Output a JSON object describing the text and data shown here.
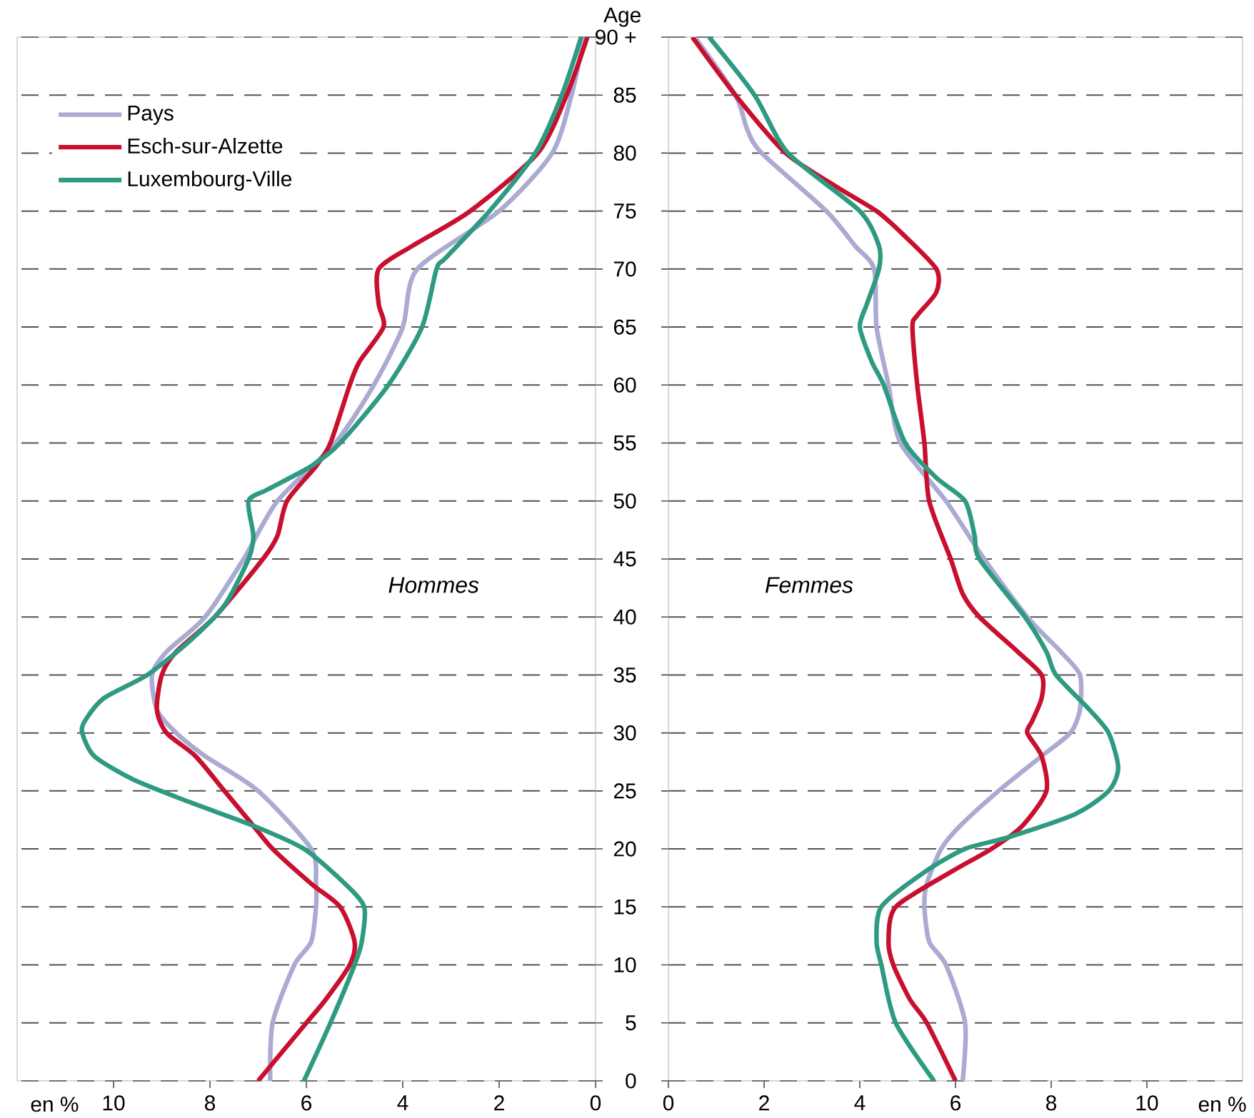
{
  "chart_data": [
    {
      "type": "line",
      "xlabel": "en %",
      "annotations": [
        "Hommes"
      ],
      "xlim": [
        12,
        0
      ],
      "xticks": [
        10,
        8,
        6,
        4,
        2,
        0
      ],
      "ylim": [
        0,
        90
      ],
      "yticks": [
        0,
        5,
        10,
        15,
        20,
        25,
        30,
        35,
        40,
        45,
        50,
        55,
        60,
        65,
        70,
        75,
        80,
        85,
        90
      ],
      "tick_labels": "x",
      "grid": "y",
      "legend": "top left",
      "series": [
        {
          "name": "Pays",
          "color": "#aaaad2",
          "x": [
            6.75,
            6.7,
            6.25,
            5.9,
            5.8,
            5.8,
            5.9,
            7.0,
            8.1,
            8.7,
            9.1,
            9.2,
            8.9,
            8.1,
            7.3,
            6.6,
            5.4,
            4.6,
            4.0,
            3.7,
            2.0,
            0.9,
            0.5,
            0.24
          ],
          "values": [
            0,
            5,
            10,
            12,
            15,
            17,
            20,
            25,
            28,
            30,
            32,
            35,
            37,
            40,
            45,
            50,
            55,
            60,
            65,
            70,
            75,
            80,
            85,
            90
          ]
        },
        {
          "name": "Esch-sur-Alzette",
          "color": "#c8102e",
          "x": [
            7.0,
            6.0,
            5.6,
            5.1,
            5.0,
            5.3,
            5.9,
            6.7,
            7.1,
            7.7,
            8.3,
            8.9,
            9.1,
            9.0,
            8.7,
            7.9,
            6.9,
            6.6,
            6.4,
            5.8,
            5.5,
            5.1,
            4.9,
            4.4,
            4.5,
            4.5,
            3.8,
            2.6,
            1.2,
            0.6,
            0.17
          ],
          "values": [
            0,
            5,
            7,
            10,
            12,
            15,
            17,
            20,
            22,
            25,
            28,
            30,
            32,
            35,
            37,
            40,
            45,
            47,
            50,
            53,
            55,
            60,
            62,
            65,
            67,
            70,
            72,
            75,
            80,
            85,
            90
          ]
        },
        {
          "name": "Luxembourg-Ville",
          "color": "#2e9a82",
          "x": [
            6.05,
            5.5,
            5.0,
            4.85,
            4.8,
            5.2,
            6.05,
            7.1,
            8.4,
            9.6,
            10.4,
            10.65,
            10.6,
            10.2,
            9.3,
            8.4,
            7.7,
            7.2,
            7.1,
            7.2,
            6.8,
            5.9,
            5.3,
            4.3,
            3.6,
            3.3,
            3.1,
            2.2,
            1.25,
            0.7,
            0.3
          ],
          "values": [
            0,
            5,
            10,
            12,
            15,
            17,
            20,
            22,
            24,
            26,
            28,
            30,
            31,
            33,
            35,
            38,
            41,
            45,
            47,
            50,
            51,
            53,
            55,
            60,
            65,
            70,
            71,
            75,
            80,
            85,
            90
          ]
        }
      ]
    },
    {
      "type": "line",
      "xlabel": "en %",
      "ylabel": "Age",
      "annotations": [
        "Femmes"
      ],
      "xlim": [
        0,
        12
      ],
      "xticks": [
        0,
        2,
        4,
        6,
        8,
        10
      ],
      "ylim": [
        0,
        90
      ],
      "yticks": [
        0,
        5,
        10,
        15,
        20,
        25,
        30,
        35,
        40,
        45,
        50,
        55,
        60,
        65,
        70,
        75,
        80,
        85,
        {
          "value": 90,
          "label": "90 +"
        }
      ],
      "grid": "y",
      "series": [
        {
          "color": "#aaaad2",
          "x": [
            6.15,
            6.2,
            5.8,
            5.45,
            5.35,
            5.4,
            5.7,
            6.1,
            6.9,
            7.8,
            8.4,
            8.6,
            8.6,
            8.2,
            7.5,
            6.6,
            5.8,
            4.85,
            4.6,
            4.35,
            4.3,
            3.9,
            3.3,
            1.95,
            1.65,
            1.4,
            0.55
          ],
          "values": [
            0,
            5,
            10,
            12,
            15,
            17,
            20,
            22,
            25,
            28,
            30,
            32,
            35,
            37,
            40,
            45,
            50,
            55,
            60,
            65,
            70,
            72,
            75,
            80,
            82,
            85,
            90
          ]
        },
        {
          "color": "#c8102e",
          "x": [
            6.0,
            5.4,
            5.05,
            4.7,
            4.6,
            4.75,
            5.9,
            6.75,
            7.4,
            7.9,
            7.8,
            7.5,
            7.6,
            7.8,
            7.8,
            7.3,
            6.5,
            6.15,
            5.9,
            5.45,
            5.35,
            5.2,
            5.1,
            5.2,
            5.6,
            5.6,
            4.9,
            4.35,
            3.55,
            2.45,
            1.4,
            0.5
          ],
          "values": [
            0,
            5,
            7,
            10,
            12,
            15,
            18,
            20,
            22,
            25,
            28,
            30,
            31,
            33,
            35,
            37,
            40,
            42,
            45,
            50,
            55,
            60,
            65,
            66,
            68,
            70,
            73,
            75,
            77,
            80,
            85,
            90
          ]
        },
        {
          "color": "#2e9a82",
          "x": [
            5.55,
            4.75,
            4.45,
            4.35,
            4.45,
            5.35,
            6.2,
            7.1,
            8.5,
            9.2,
            9.4,
            9.2,
            8.8,
            8.1,
            7.9,
            7.45,
            6.5,
            6.4,
            6.2,
            5.6,
            4.95,
            4.5,
            4.25,
            4.0,
            4.15,
            4.4,
            4.4,
            4.0,
            2.5,
            1.8,
            0.85
          ],
          "values": [
            0,
            5,
            10,
            12,
            15,
            18,
            20,
            21,
            23,
            25,
            27,
            30,
            32,
            35,
            37,
            40,
            45,
            47,
            50,
            52,
            55,
            60,
            62,
            65,
            67,
            70,
            72,
            75,
            80,
            85,
            90
          ]
        }
      ]
    }
  ]
}
